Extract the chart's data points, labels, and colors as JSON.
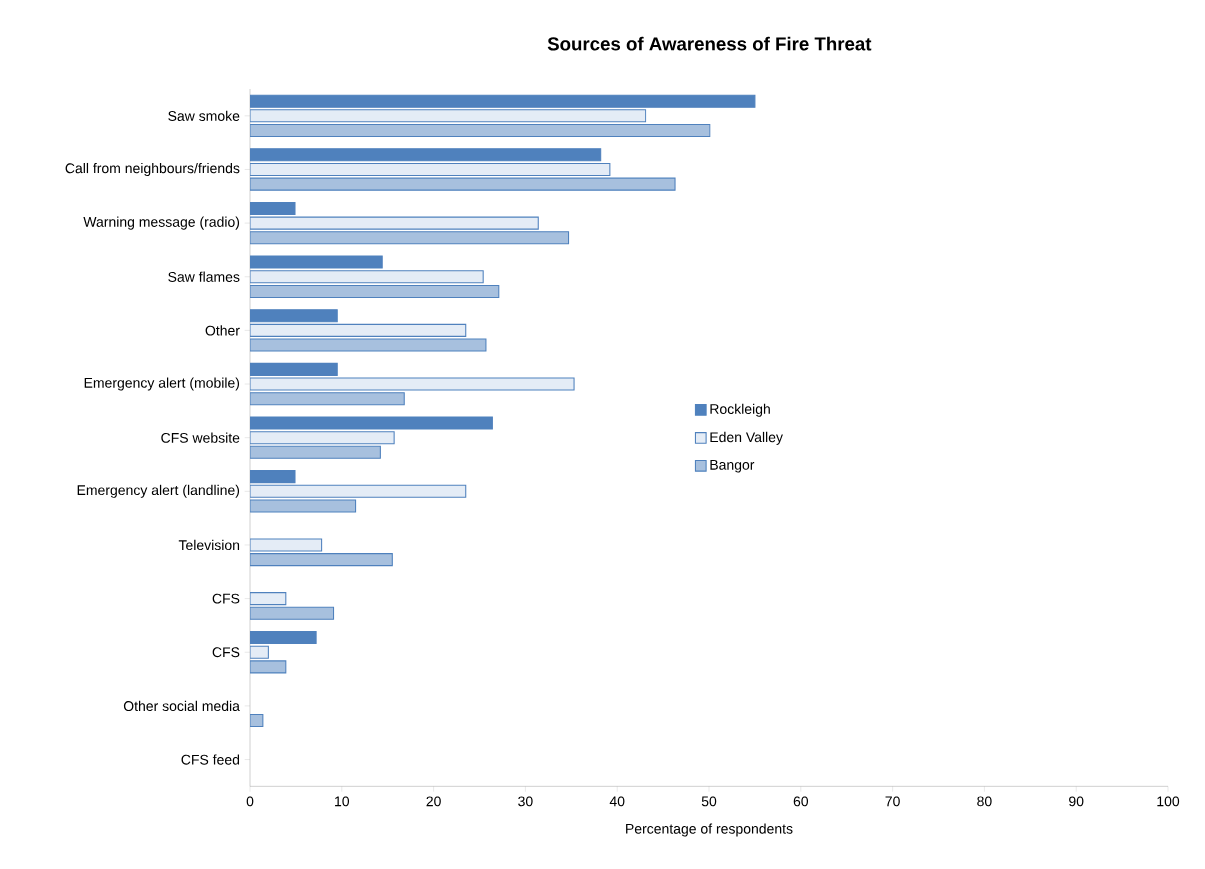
{
  "chart_data": {
    "type": "bar",
    "orientation": "horizontal",
    "title": "Sources of Awareness of Fire Threat",
    "xlabel": "Percentage of respondents",
    "categories": [
      "Saw smoke",
      "Call from neighbours/friends",
      "Warning message (radio)",
      "Saw flames",
      "Other",
      "Emergency alert (mobile)",
      "CFS website",
      "Emergency alert (landline)",
      "Television",
      "CFS",
      "CFS",
      "Other social media",
      "CFS feed"
    ],
    "series": [
      {
        "name": "Rockleigh",
        "color": "#4f81bd",
        "values": [
          55.0,
          38.2,
          4.9,
          14.4,
          9.5,
          9.5,
          26.4,
          4.9,
          0,
          0,
          7.2,
          0,
          0
        ]
      },
      {
        "name": "Eden Valley",
        "color": "#e4ecf6",
        "values": [
          43.1,
          39.2,
          31.4,
          25.4,
          23.5,
          35.3,
          15.7,
          23.5,
          7.8,
          3.9,
          2.0,
          0,
          0
        ]
      },
      {
        "name": "Bangor",
        "color": "#a7c0de",
        "values": [
          50.1,
          46.3,
          34.7,
          27.1,
          25.7,
          16.8,
          14.2,
          11.5,
          15.5,
          9.1,
          3.9,
          1.4,
          0
        ]
      }
    ],
    "xlim": [
      0,
      100
    ],
    "xticks": [
      0,
      10,
      20,
      30,
      40,
      50,
      60,
      70,
      80,
      90,
      100
    ],
    "grid": false,
    "legend": "right"
  }
}
